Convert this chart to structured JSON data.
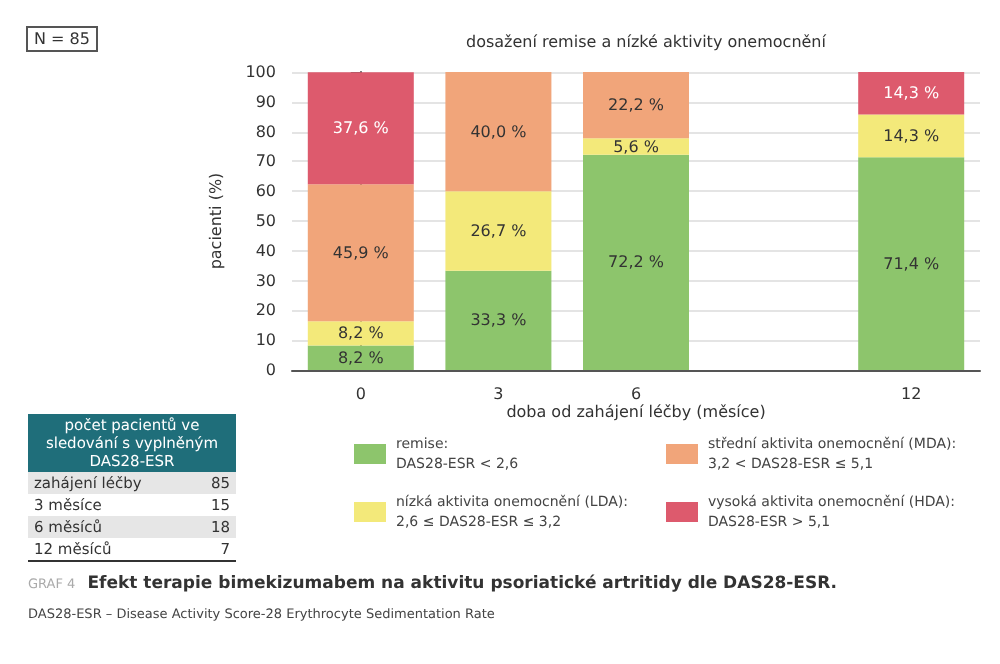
{
  "chart_data": {
    "type": "bar",
    "stacked": true,
    "title": "dosažení remise a nízké aktivity onemocnění",
    "xlabel": "doba od zahájení léčby (měsíce)",
    "ylabel": "pacienti (%)",
    "x": [
      0,
      3,
      6,
      12
    ],
    "xlim": [
      -1.5,
      13.5
    ],
    "xticks": [
      0,
      3,
      6,
      12
    ],
    "ylim": [
      0,
      100
    ],
    "yticks": [
      0,
      10,
      20,
      30,
      40,
      50,
      60,
      70,
      80,
      90,
      100
    ],
    "grid": "y",
    "legend": "bottom",
    "series": [
      {
        "name": "remise: DAS28-ESR < 2,6",
        "color": "#8dc56c",
        "values": [
          8.2,
          33.3,
          72.2,
          71.4
        ],
        "value_labels": [
          "8,2 %",
          "33,3 %",
          "72,2 %",
          "71,4 %"
        ]
      },
      {
        "name": "nízká aktivita onemocnění (LDA): 2,6 ≤ DAS28-ESR ≤ 3,2",
        "color": "#f3e97a",
        "values": [
          8.2,
          26.7,
          5.6,
          14.3
        ],
        "value_labels": [
          "8,2 %",
          "26,7 %",
          "5,6 %",
          "14,3 %"
        ]
      },
      {
        "name": "střední aktivita onemocnění (MDA): 3,2 < DAS28-ESR ≤ 5,1",
        "color": "#f1a57a",
        "values": [
          45.9,
          40.0,
          22.2,
          null
        ],
        "value_labels": [
          "45,9 %",
          "40,0 %",
          "22,2 %",
          null
        ]
      },
      {
        "name": "vysoká aktivita onemocnění (HDA): DAS28-ESR > 5,1",
        "color": "#dd5a6d",
        "values": [
          37.6,
          null,
          null,
          14.3
        ],
        "value_labels": [
          "37,6 %",
          null,
          null,
          "14,3 %"
        ]
      }
    ],
    "annotations": [
      "N = 85",
      "počet pacientů ve sledování s vyplněným DAS28-ESR",
      "zahájení léčby",
      "85",
      "3 měsíce",
      "15",
      "6 měsíců",
      "18",
      "12 měsíců",
      "7",
      "GRAF 4",
      "Efekt terapie bimekizumabem na aktivitu psoriatické artritidy dle DAS28-ESR.",
      "DAS28-ESR – Disease Activity Score-28 Erythrocyte Sedimentation Rate"
    ]
  }
}
